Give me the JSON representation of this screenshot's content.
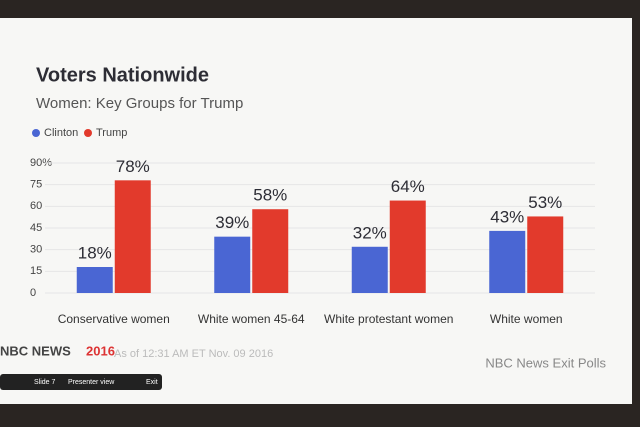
{
  "chart_data": {
    "type": "bar",
    "title": "Voters Nationwide",
    "subtitle": "Women: Key Groups for Trump",
    "categories": [
      "Conservative women",
      "White women 45-64",
      "White protestant women",
      "White women"
    ],
    "series": [
      {
        "name": "Clinton",
        "color": "#4a66d3",
        "values": [
          18,
          39,
          32,
          43
        ],
        "value_labels": [
          "18%",
          "39%",
          "32%",
          "43%"
        ]
      },
      {
        "name": "Trump",
        "color": "#e23a2c",
        "values": [
          78,
          58,
          64,
          53
        ],
        "value_labels": [
          "78%",
          "58%",
          "64%",
          "53%"
        ]
      }
    ],
    "ylim": [
      0,
      90
    ],
    "yticks": [
      0,
      15,
      30,
      45,
      60,
      75,
      {
        "value": 90,
        "label": "90%"
      }
    ],
    "grid": true,
    "legend": "top-left"
  },
  "footer": {
    "brand": "NBC NEWS",
    "year": "2016",
    "timestamp": "As of 12:31 AM ET Nov. 09 2016",
    "source": "NBC News Exit Polls"
  },
  "toolbar": {
    "slide": "Slide 7",
    "presenter": "Presenter view",
    "exit": "Exit"
  }
}
